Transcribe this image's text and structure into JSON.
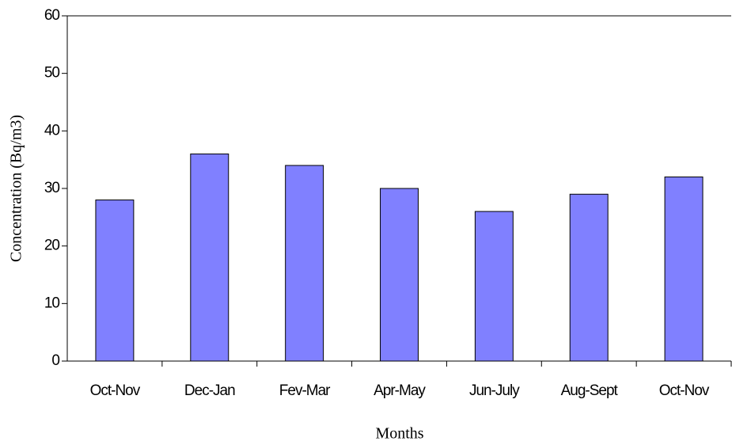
{
  "chart_data": {
    "type": "bar",
    "x_label": "Months",
    "y_label": "Concentration (Bq/m3)",
    "categories": [
      "Oct-Nov",
      "Dec-Jan",
      "Fev-Mar",
      "Apr-May",
      "Jun-July",
      "Aug-Sept",
      "Oct-Nov"
    ],
    "values": [
      28,
      36,
      34,
      30,
      26,
      29,
      32
    ],
    "color": "#8080ff",
    "ylim": [
      0,
      60
    ],
    "yticks": [
      0,
      10,
      20,
      30,
      40,
      50,
      60
    ],
    "grid": false
  }
}
